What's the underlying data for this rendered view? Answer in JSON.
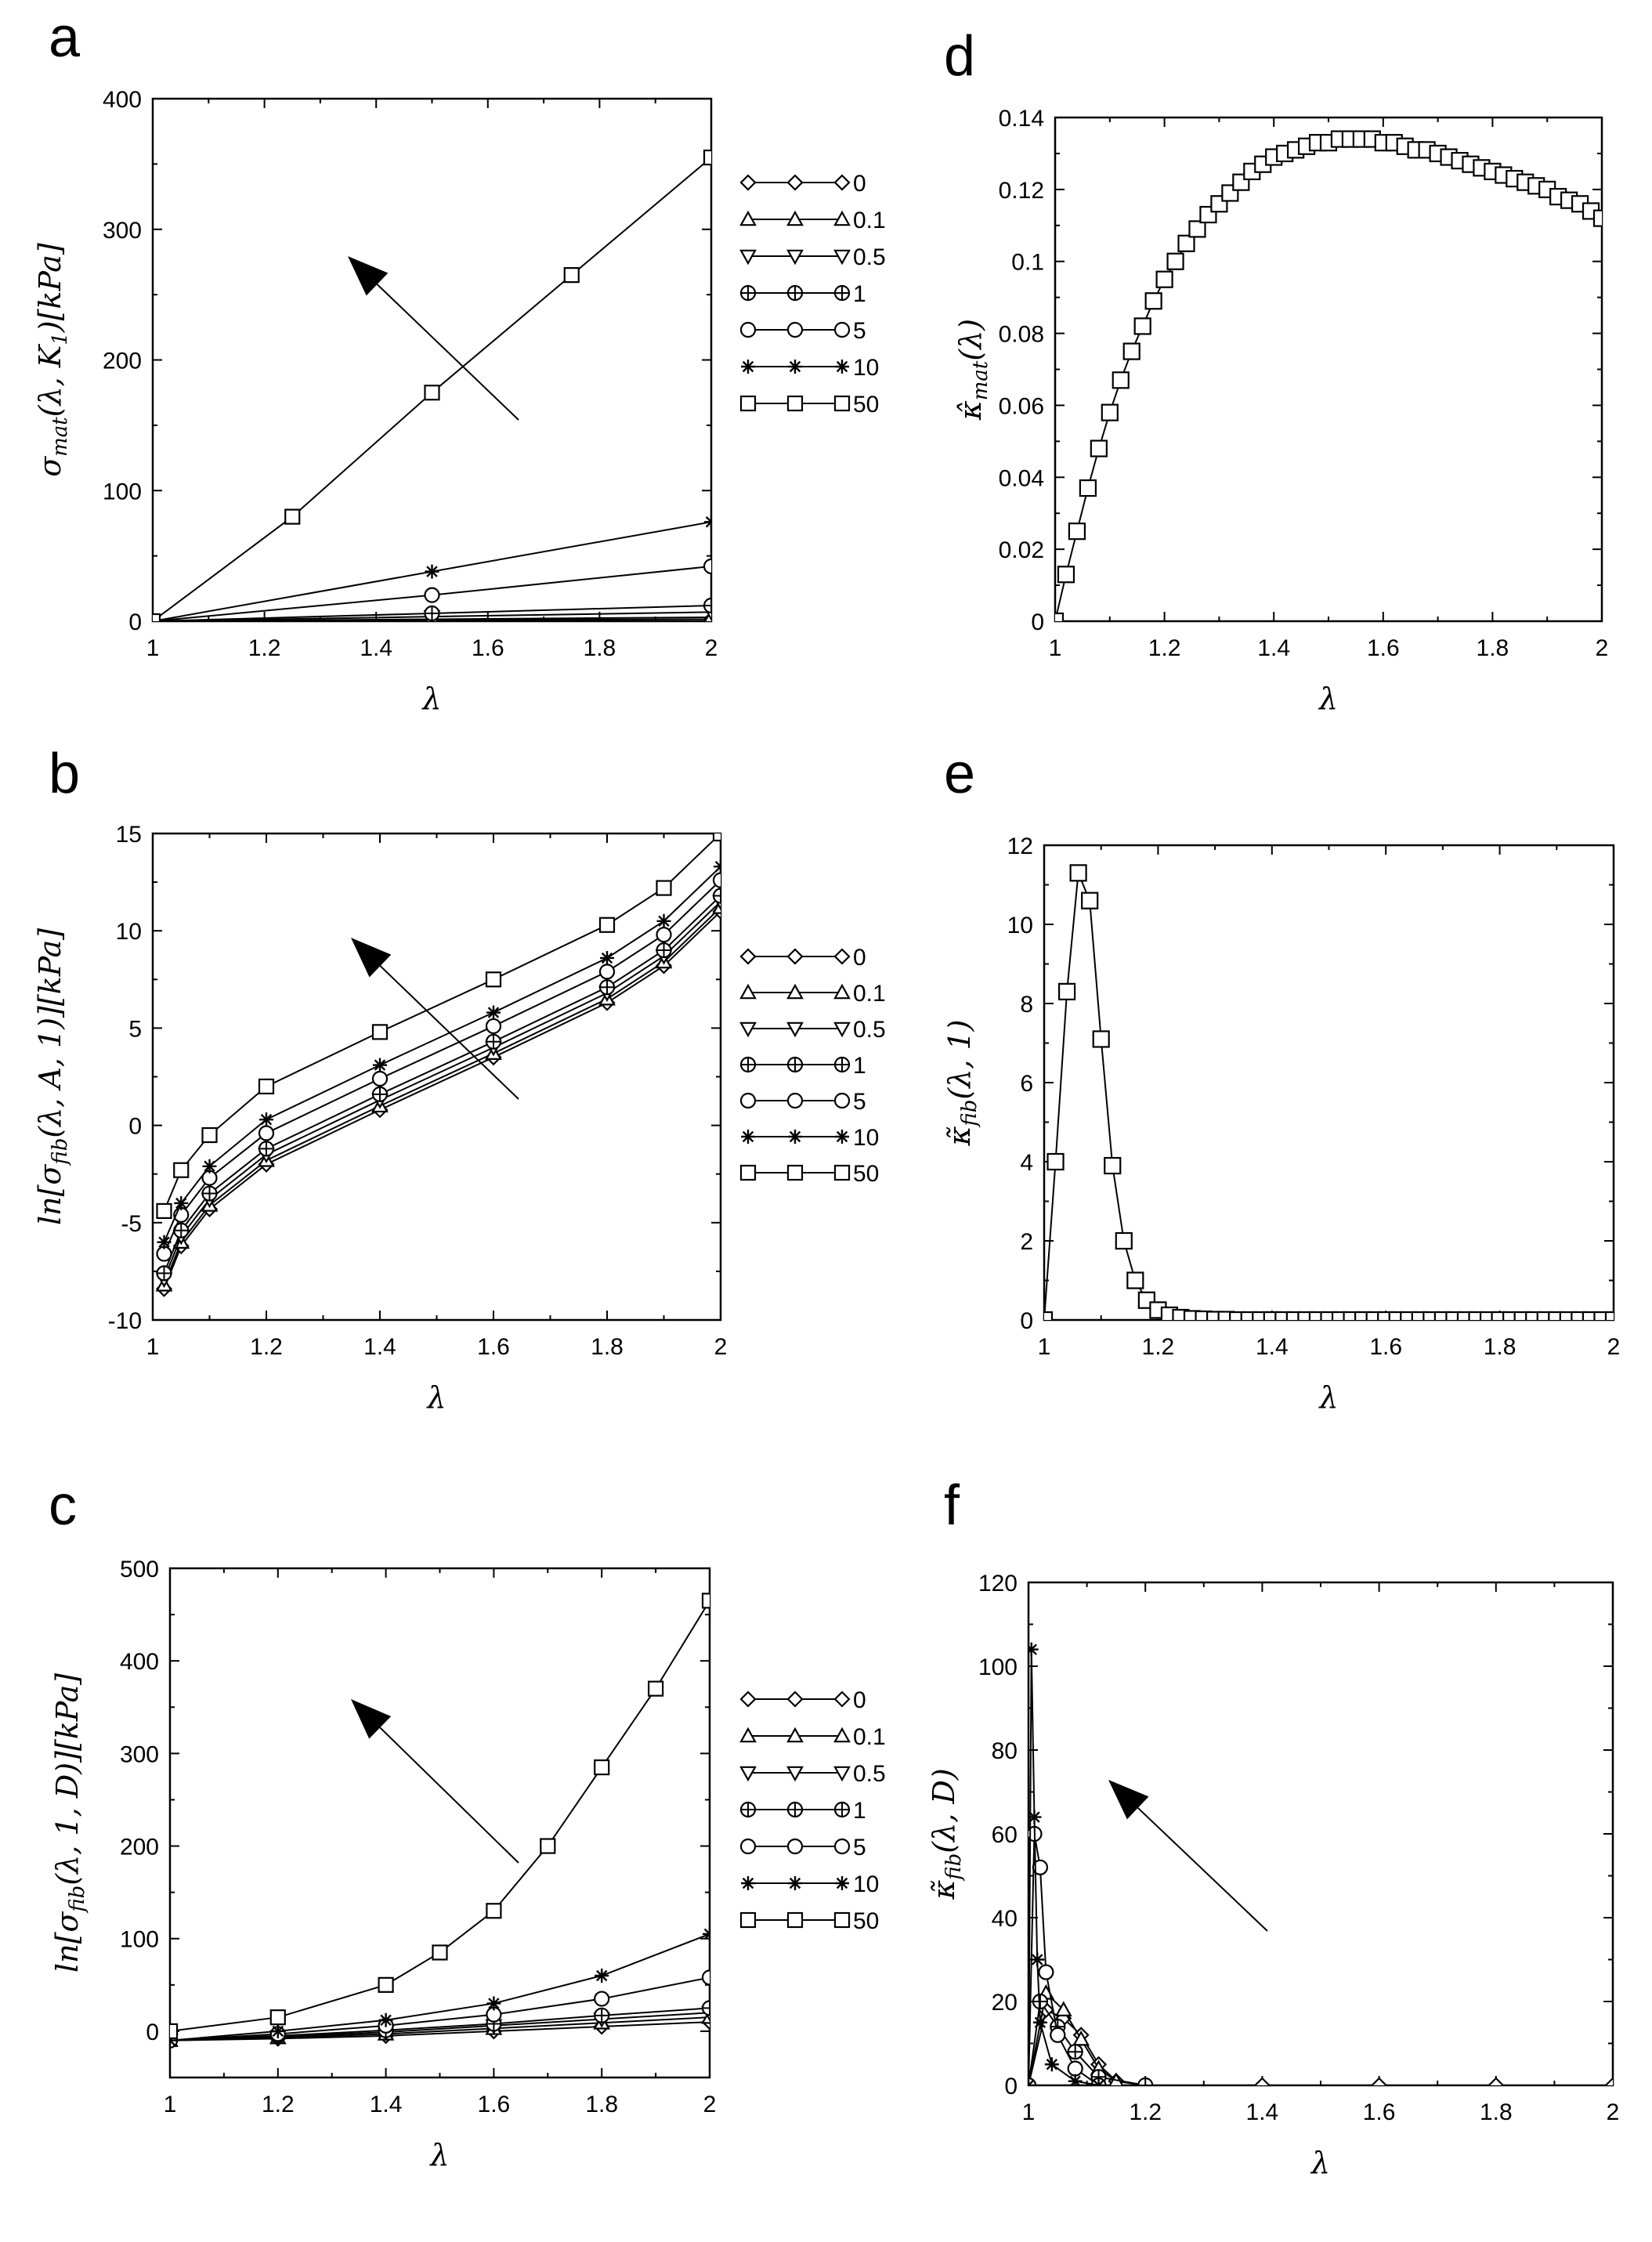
{
  "chart_data": [
    {
      "id": "a",
      "type": "scatter",
      "panel_label": "a",
      "xlabel": "λ",
      "ylabel": "σ_mat(λ, K₁)[kPa]",
      "xlim": [
        1,
        2
      ],
      "ylim": [
        0,
        400
      ],
      "xticks": [
        1,
        1.2,
        1.4,
        1.6,
        1.8,
        2
      ],
      "yticks": [
        0,
        100,
        200,
        300,
        400
      ],
      "legend": [
        "0",
        "0.1",
        "0.5",
        "1",
        "5",
        "10",
        "50"
      ],
      "annotation": "arrow pointing in direction of increasing parameter",
      "series": [
        {
          "name": "0",
          "marker": "diamond",
          "x": [
            1.0,
            1.5,
            2.0
          ],
          "y": [
            0,
            0.8,
            1.5
          ]
        },
        {
          "name": "0.1",
          "marker": "triangle-up",
          "x": [
            1.0,
            1.5,
            2.0
          ],
          "y": [
            0,
            1.5,
            3
          ]
        },
        {
          "name": "0.5",
          "marker": "triangle-down",
          "x": [
            1.0,
            1.5,
            2.0
          ],
          "y": [
            0,
            3.5,
            7
          ]
        },
        {
          "name": "1",
          "marker": "circle-plus",
          "x": [
            1.0,
            1.5,
            2.0
          ],
          "y": [
            0,
            6,
            12
          ]
        },
        {
          "name": "5",
          "marker": "circle",
          "x": [
            1.0,
            1.5,
            2.0
          ],
          "y": [
            0,
            20,
            42
          ]
        },
        {
          "name": "10",
          "marker": "star",
          "x": [
            1.0,
            1.5,
            2.0
          ],
          "y": [
            0,
            38,
            76
          ]
        },
        {
          "name": "50",
          "marker": "square",
          "x": [
            1.0,
            1.25,
            1.5,
            1.75,
            2.0
          ],
          "y": [
            0,
            80,
            175,
            265,
            355
          ]
        }
      ]
    },
    {
      "id": "b",
      "type": "scatter",
      "panel_label": "b",
      "xlabel": "λ",
      "ylabel": "ln[σ_fib(λ, A, 1)][kPa]",
      "xlim": [
        1,
        2
      ],
      "ylim": [
        -10,
        15
      ],
      "xticks": [
        1,
        1.2,
        1.4,
        1.6,
        1.8,
        2
      ],
      "yticks": [
        -10,
        -5,
        0,
        5,
        10,
        15
      ],
      "legend": [
        "0",
        "0.1",
        "0.5",
        "1",
        "5",
        "10",
        "50"
      ],
      "annotation": "arrow pointing in direction of increasing parameter",
      "series": [
        {
          "name": "0",
          "marker": "diamond",
          "x": [
            1.02,
            1.05,
            1.1,
            1.2,
            1.4,
            1.6,
            1.8,
            1.9,
            2.0
          ],
          "y": [
            -8.4,
            -6.2,
            -4.3,
            -2.0,
            0.8,
            3.5,
            6.3,
            8.2,
            11.0
          ]
        },
        {
          "name": "0.1",
          "marker": "triangle-up",
          "x": [
            1.02,
            1.05,
            1.1,
            1.2,
            1.4,
            1.6,
            1.8,
            1.9,
            2.0
          ],
          "y": [
            -8.2,
            -6.0,
            -4.1,
            -1.8,
            1.0,
            3.7,
            6.5,
            8.4,
            11.2
          ]
        },
        {
          "name": "0.5",
          "marker": "triangle-down",
          "x": [
            1.02,
            1.05,
            1.1,
            1.2,
            1.4,
            1.6,
            1.8,
            1.9,
            2.0
          ],
          "y": [
            -7.9,
            -5.7,
            -3.8,
            -1.5,
            1.3,
            4.0,
            6.8,
            8.7,
            11.5
          ]
        },
        {
          "name": "1",
          "marker": "circle-plus",
          "x": [
            1.02,
            1.05,
            1.1,
            1.2,
            1.4,
            1.6,
            1.8,
            1.9,
            2.0
          ],
          "y": [
            -7.6,
            -5.4,
            -3.5,
            -1.2,
            1.6,
            4.3,
            7.1,
            9.0,
            11.8
          ]
        },
        {
          "name": "5",
          "marker": "circle",
          "x": [
            1.02,
            1.05,
            1.1,
            1.2,
            1.4,
            1.6,
            1.8,
            1.9,
            2.0
          ],
          "y": [
            -6.6,
            -4.6,
            -2.7,
            -0.4,
            2.4,
            5.1,
            7.9,
            9.8,
            12.6
          ]
        },
        {
          "name": "10",
          "marker": "star",
          "x": [
            1.02,
            1.05,
            1.1,
            1.2,
            1.4,
            1.6,
            1.8,
            1.9,
            2.0
          ],
          "y": [
            -6.0,
            -4.0,
            -2.1,
            0.3,
            3.1,
            5.8,
            8.6,
            10.5,
            13.3
          ]
        },
        {
          "name": "50",
          "marker": "square",
          "x": [
            1.02,
            1.05,
            1.1,
            1.2,
            1.4,
            1.6,
            1.8,
            1.9,
            2.0
          ],
          "y": [
            -4.4,
            -2.3,
            -0.5,
            2.0,
            4.8,
            7.5,
            10.3,
            12.2,
            15.0
          ]
        }
      ]
    },
    {
      "id": "c",
      "type": "scatter",
      "panel_label": "c",
      "xlabel": "λ",
      "ylabel": "ln[σ_fib(λ, 1, D)][kPa]",
      "xlim": [
        1,
        2
      ],
      "ylim": [
        -50,
        500
      ],
      "xticks": [
        1,
        1.2,
        1.4,
        1.6,
        1.8,
        2
      ],
      "yticks": [
        0,
        100,
        200,
        300,
        400,
        500
      ],
      "legend": [
        "0",
        "0.1",
        "0.5",
        "1",
        "5",
        "10",
        "50"
      ],
      "annotation": "arrow pointing in direction of increasing parameter",
      "series": [
        {
          "name": "0",
          "marker": "diamond",
          "x": [
            1.0,
            1.2,
            1.4,
            1.6,
            1.8,
            2.0
          ],
          "y": [
            -10,
            -8,
            -5,
            0,
            5,
            10
          ]
        },
        {
          "name": "0.1",
          "marker": "triangle-up",
          "x": [
            1.0,
            1.2,
            1.4,
            1.6,
            1.8,
            2.0
          ],
          "y": [
            -10,
            -7,
            -3,
            3,
            9,
            15
          ]
        },
        {
          "name": "0.5",
          "marker": "triangle-down",
          "x": [
            1.0,
            1.2,
            1.4,
            1.6,
            1.8,
            2.0
          ],
          "y": [
            -10,
            -6,
            -1,
            6,
            13,
            20
          ]
        },
        {
          "name": "1",
          "marker": "circle-plus",
          "x": [
            1.0,
            1.2,
            1.4,
            1.6,
            1.8,
            2.0
          ],
          "y": [
            -10,
            -5,
            1,
            8,
            17,
            25
          ]
        },
        {
          "name": "5",
          "marker": "circle",
          "x": [
            1.0,
            1.2,
            1.4,
            1.6,
            1.8,
            2.0
          ],
          "y": [
            -10,
            -3,
            6,
            18,
            35,
            58
          ]
        },
        {
          "name": "10",
          "marker": "star",
          "x": [
            1.0,
            1.2,
            1.4,
            1.6,
            1.8,
            2.0
          ],
          "y": [
            -10,
            0,
            12,
            30,
            60,
            105
          ]
        },
        {
          "name": "50",
          "marker": "square",
          "x": [
            1.0,
            1.2,
            1.4,
            1.5,
            1.6,
            1.7,
            1.8,
            1.9,
            2.0
          ],
          "y": [
            0,
            15,
            50,
            85,
            130,
            200,
            285,
            370,
            465
          ]
        }
      ]
    },
    {
      "id": "d",
      "type": "line",
      "panel_label": "d",
      "xlabel": "λ",
      "ylabel": "κ̂_mat(λ)",
      "xlim": [
        1,
        2
      ],
      "ylim": [
        0,
        0.14
      ],
      "xticks": [
        1,
        1.2,
        1.4,
        1.6,
        1.8,
        2
      ],
      "yticks": [
        0,
        0.02,
        0.04,
        0.06,
        0.08,
        0.1,
        0.12,
        0.14
      ],
      "series": [
        {
          "name": "κ̂_mat",
          "marker": "square",
          "x": [
            1.0,
            1.02,
            1.04,
            1.06,
            1.08,
            1.1,
            1.12,
            1.14,
            1.16,
            1.18,
            1.2,
            1.22,
            1.24,
            1.26,
            1.28,
            1.3,
            1.32,
            1.34,
            1.36,
            1.38,
            1.4,
            1.42,
            1.44,
            1.46,
            1.48,
            1.5,
            1.52,
            1.54,
            1.56,
            1.58,
            1.6,
            1.62,
            1.64,
            1.66,
            1.68,
            1.7,
            1.72,
            1.74,
            1.76,
            1.78,
            1.8,
            1.82,
            1.84,
            1.86,
            1.88,
            1.9,
            1.92,
            1.94,
            1.96,
            1.98,
            2.0
          ],
          "y": [
            0,
            0.013,
            0.025,
            0.037,
            0.048,
            0.058,
            0.067,
            0.075,
            0.082,
            0.089,
            0.095,
            0.1,
            0.105,
            0.109,
            0.113,
            0.116,
            0.119,
            0.122,
            0.125,
            0.127,
            0.129,
            0.13,
            0.131,
            0.132,
            0.133,
            0.133,
            0.134,
            0.134,
            0.134,
            0.134,
            0.133,
            0.133,
            0.132,
            0.131,
            0.131,
            0.13,
            0.129,
            0.128,
            0.127,
            0.126,
            0.125,
            0.124,
            0.123,
            0.122,
            0.121,
            0.12,
            0.118,
            0.117,
            0.116,
            0.114,
            0.112
          ]
        }
      ]
    },
    {
      "id": "e",
      "type": "line",
      "panel_label": "e",
      "xlabel": "λ",
      "ylabel": "κ̃_fib(λ, 1)",
      "xlim": [
        1,
        2
      ],
      "ylim": [
        0,
        12
      ],
      "xticks": [
        1,
        1.2,
        1.4,
        1.6,
        1.8,
        2
      ],
      "yticks": [
        0,
        2,
        4,
        6,
        8,
        10,
        12
      ],
      "series": [
        {
          "name": "κ̃_fib",
          "marker": "square",
          "x": [
            1.0,
            1.02,
            1.04,
            1.06,
            1.08,
            1.1,
            1.12,
            1.14,
            1.16,
            1.18,
            1.2,
            1.22,
            1.24,
            1.26,
            1.28,
            1.3,
            1.32,
            1.34,
            1.36,
            1.38,
            1.4,
            1.42,
            1.44,
            1.46,
            1.48,
            1.5,
            1.52,
            1.54,
            1.56,
            1.58,
            1.6,
            1.62,
            1.64,
            1.66,
            1.68,
            1.7,
            1.72,
            1.74,
            1.76,
            1.78,
            1.8,
            1.82,
            1.84,
            1.86,
            1.88,
            1.9,
            1.92,
            1.94,
            1.96,
            1.98,
            2.0
          ],
          "y": [
            0,
            4.0,
            8.3,
            11.3,
            10.6,
            7.1,
            3.9,
            2.0,
            1.0,
            0.5,
            0.25,
            0.12,
            0.06,
            0.03,
            0.02,
            0.01,
            0.01,
            0,
            0,
            0,
            0,
            0,
            0,
            0,
            0,
            0,
            0,
            0,
            0,
            0,
            0,
            0,
            0,
            0,
            0,
            0,
            0,
            0,
            0,
            0,
            0,
            0,
            0,
            0,
            0,
            0,
            0,
            0,
            0,
            0,
            0
          ]
        }
      ]
    },
    {
      "id": "f",
      "type": "scatter",
      "panel_label": "f",
      "xlabel": "λ",
      "ylabel": "κ̃_fib(λ, D)",
      "xlim": [
        1,
        2
      ],
      "ylim": [
        0,
        120
      ],
      "xticks": [
        1,
        1.2,
        1.4,
        1.6,
        1.8,
        2
      ],
      "yticks": [
        0,
        20,
        40,
        60,
        80,
        100,
        120
      ],
      "annotation": "arrow pointing in direction of increasing parameter",
      "series": [
        {
          "name": "0",
          "marker": "diamond",
          "x": [
            1.0,
            1.03,
            1.06,
            1.09,
            1.12,
            1.15,
            1.2,
            1.4,
            1.6,
            1.8,
            2.0
          ],
          "y": [
            0,
            18,
            16,
            12,
            5,
            1,
            0,
            0,
            0,
            0,
            0
          ]
        },
        {
          "name": "0.1",
          "marker": "triangle-up",
          "x": [
            1.0,
            1.03,
            1.06,
            1.09,
            1.12,
            1.15,
            1.2
          ],
          "y": [
            0,
            22,
            18,
            11,
            4,
            1,
            0
          ]
        },
        {
          "name": "1",
          "marker": "circle-plus",
          "x": [
            1.0,
            1.02,
            1.05,
            1.08,
            1.12,
            1.2
          ],
          "y": [
            0,
            20,
            14,
            8,
            2,
            0
          ]
        },
        {
          "name": "5",
          "marker": "circle",
          "x": [
            1.0,
            1.01,
            1.02,
            1.03,
            1.05,
            1.08,
            1.12
          ],
          "y": [
            0,
            60,
            52,
            27,
            12,
            4,
            0
          ]
        },
        {
          "name": "10",
          "marker": "star",
          "x": [
            1.0,
            1.005,
            1.01,
            1.015,
            1.02,
            1.04,
            1.08,
            1.12
          ],
          "y": [
            0,
            104,
            64,
            30,
            15,
            5,
            1,
            0
          ]
        }
      ]
    }
  ]
}
